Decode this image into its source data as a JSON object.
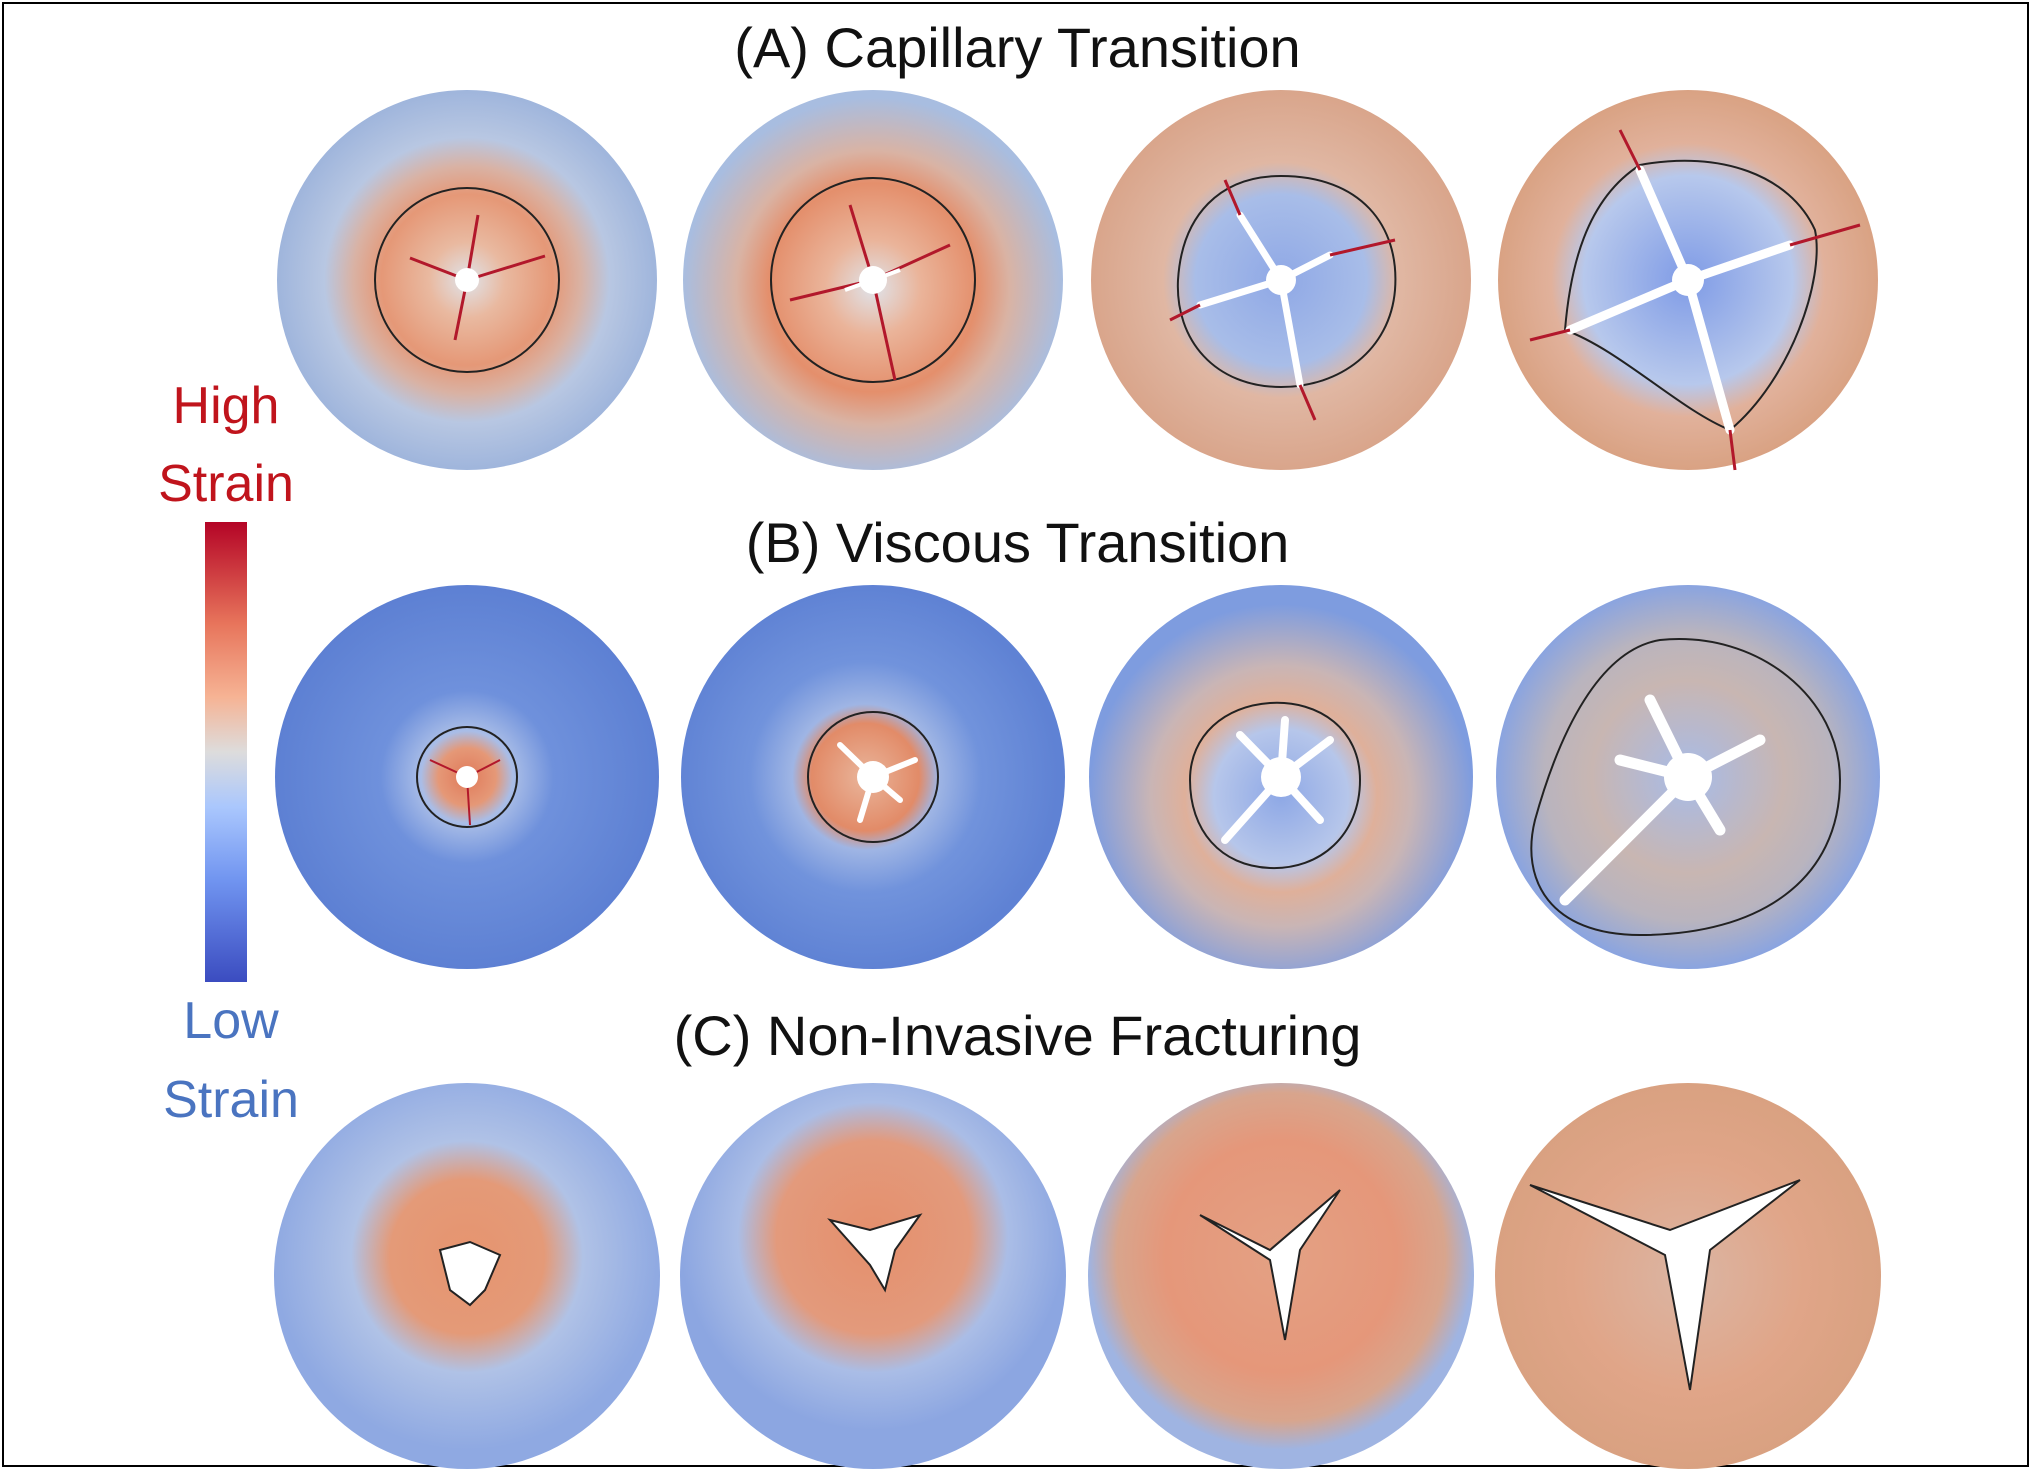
{
  "figure": {
    "rows": [
      {
        "title": "(A) Capillary Transition"
      },
      {
        "title": "(B) Viscous Transition"
      },
      {
        "title": "(C) Non-Invasive Fracturing"
      }
    ],
    "legend": {
      "high_line1": "High",
      "high_line2": "Strain",
      "low_line1": "Low",
      "low_line2": "Strain",
      "colormap": [
        "#3b4cc0",
        "#7094f0",
        "#aac7fd",
        "#dddcdc",
        "#f6b394",
        "#e7745b",
        "#b40426"
      ]
    },
    "panels_per_row": 4
  }
}
